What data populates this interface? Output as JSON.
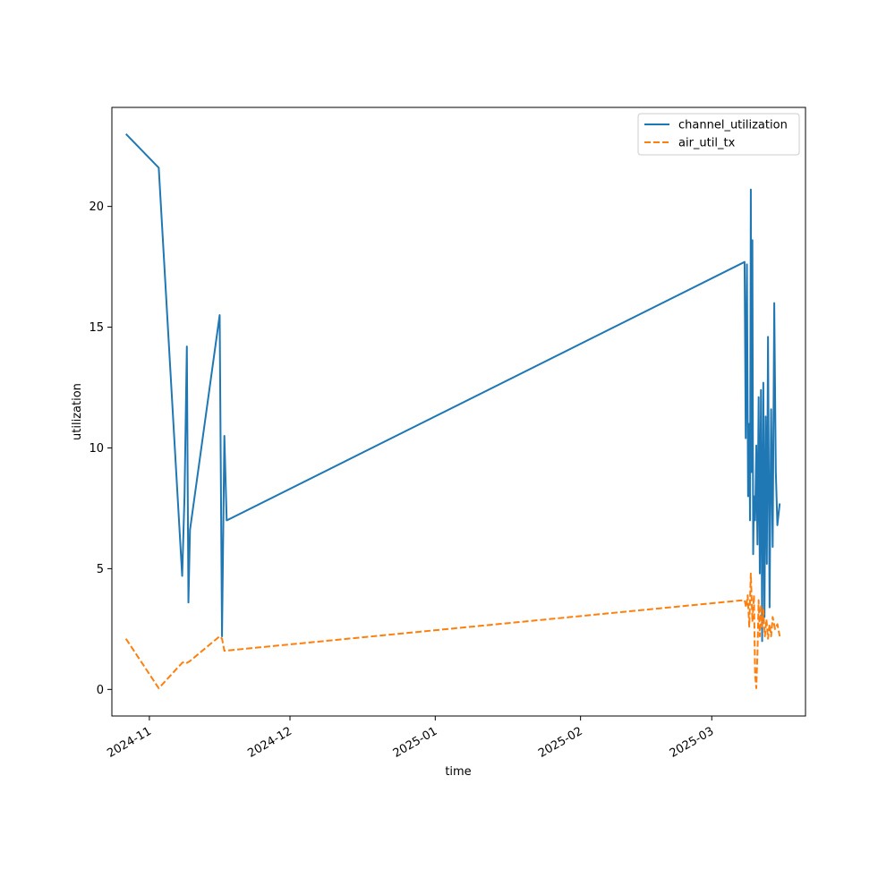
{
  "chart_data": {
    "type": "line",
    "xlabel": "time",
    "ylabel": "utilization",
    "xlim": [
      "2024-10-24",
      "2025-03-21"
    ],
    "ylim": [
      -1.1,
      24.1
    ],
    "x_ticks": [
      {
        "value": "2024-11-01",
        "label": "2024-11"
      },
      {
        "value": "2024-12-01",
        "label": "2024-12"
      },
      {
        "value": "2025-01-01",
        "label": "2025-01"
      },
      {
        "value": "2025-02-01",
        "label": "2025-02"
      },
      {
        "value": "2025-03-01",
        "label": "2025-03"
      }
    ],
    "y_ticks": [
      {
        "value": 0,
        "label": "0"
      },
      {
        "value": 5,
        "label": "5"
      },
      {
        "value": 10,
        "label": "10"
      },
      {
        "value": 15,
        "label": "15"
      },
      {
        "value": 20,
        "label": "20"
      }
    ],
    "grid": false,
    "legend_position": "top-right",
    "series": [
      {
        "name": "channel_utilization",
        "color": "#1f77b4",
        "dash": "solid",
        "points": [
          [
            "2024-10-27",
            23.0
          ],
          [
            "2024-11-03",
            21.6
          ],
          [
            "2024-11-08",
            4.7
          ],
          [
            "2024-11-08",
            8.0
          ],
          [
            "2024-11-09",
            14.2
          ],
          [
            "2024-11-09",
            3.6
          ],
          [
            "2024-11-09",
            6.6
          ],
          [
            "2024-11-16",
            15.5
          ],
          [
            "2024-11-16",
            2.2
          ],
          [
            "2024-11-17",
            10.5
          ],
          [
            "2024-11-17",
            7.0
          ],
          [
            "2025-03-08",
            17.7
          ],
          [
            "2025-03-08",
            10.4
          ],
          [
            "2025-03-08",
            17.6
          ],
          [
            "2025-03-08",
            8.0
          ],
          [
            "2025-03-09",
            11.0
          ],
          [
            "2025-03-09",
            7.0
          ],
          [
            "2025-03-09",
            20.7
          ],
          [
            "2025-03-09",
            9.0
          ],
          [
            "2025-03-09",
            18.6
          ],
          [
            "2025-03-09",
            5.6
          ],
          [
            "2025-03-10",
            8.0
          ],
          [
            "2025-03-10",
            7.0
          ],
          [
            "2025-03-10",
            10.1
          ],
          [
            "2025-03-10",
            6.0
          ],
          [
            "2025-03-11",
            12.1
          ],
          [
            "2025-03-11",
            4.8
          ],
          [
            "2025-03-11",
            12.4
          ],
          [
            "2025-03-11",
            2.0
          ],
          [
            "2025-03-12",
            12.7
          ],
          [
            "2025-03-12",
            3.0
          ],
          [
            "2025-03-12",
            11.3
          ],
          [
            "2025-03-12",
            5.2
          ],
          [
            "2025-03-13",
            14.6
          ],
          [
            "2025-03-13",
            3.4
          ],
          [
            "2025-03-13",
            11.6
          ],
          [
            "2025-03-14",
            5.9
          ],
          [
            "2025-03-14",
            16.0
          ],
          [
            "2025-03-14",
            9.0
          ],
          [
            "2025-03-15",
            6.8
          ],
          [
            "2025-03-15",
            7.7
          ]
        ]
      },
      {
        "name": "air_util_tx",
        "color": "#ff7f0e",
        "dash": "dashed",
        "points": [
          [
            "2024-10-27",
            2.1
          ],
          [
            "2024-11-03",
            0.05
          ],
          [
            "2024-11-08",
            1.1
          ],
          [
            "2024-11-08",
            1.15
          ],
          [
            "2024-11-09",
            1.1
          ],
          [
            "2024-11-09",
            1.15
          ],
          [
            "2024-11-16",
            2.2
          ],
          [
            "2024-11-16",
            2.1
          ],
          [
            "2024-11-17",
            1.6
          ],
          [
            "2025-03-08",
            3.7
          ],
          [
            "2025-03-08",
            3.4
          ],
          [
            "2025-03-08",
            3.9
          ],
          [
            "2025-03-09",
            2.6
          ],
          [
            "2025-03-09",
            4.8
          ],
          [
            "2025-03-09",
            2.8
          ],
          [
            "2025-03-10",
            3.9
          ],
          [
            "2025-03-10",
            0.6
          ],
          [
            "2025-03-10",
            0.05
          ],
          [
            "2025-03-10",
            1.5
          ],
          [
            "2025-03-11",
            3.7
          ],
          [
            "2025-03-11",
            2.2
          ],
          [
            "2025-03-11",
            3.5
          ],
          [
            "2025-03-11",
            2.6
          ],
          [
            "2025-03-12",
            3.3
          ],
          [
            "2025-03-12",
            2.2
          ],
          [
            "2025-03-12",
            2.9
          ],
          [
            "2025-03-13",
            2.1
          ],
          [
            "2025-03-13",
            2.7
          ],
          [
            "2025-03-13",
            2.2
          ],
          [
            "2025-03-14",
            3.0
          ],
          [
            "2025-03-14",
            2.5
          ],
          [
            "2025-03-15",
            2.7
          ],
          [
            "2025-03-15",
            2.2
          ]
        ]
      }
    ]
  }
}
